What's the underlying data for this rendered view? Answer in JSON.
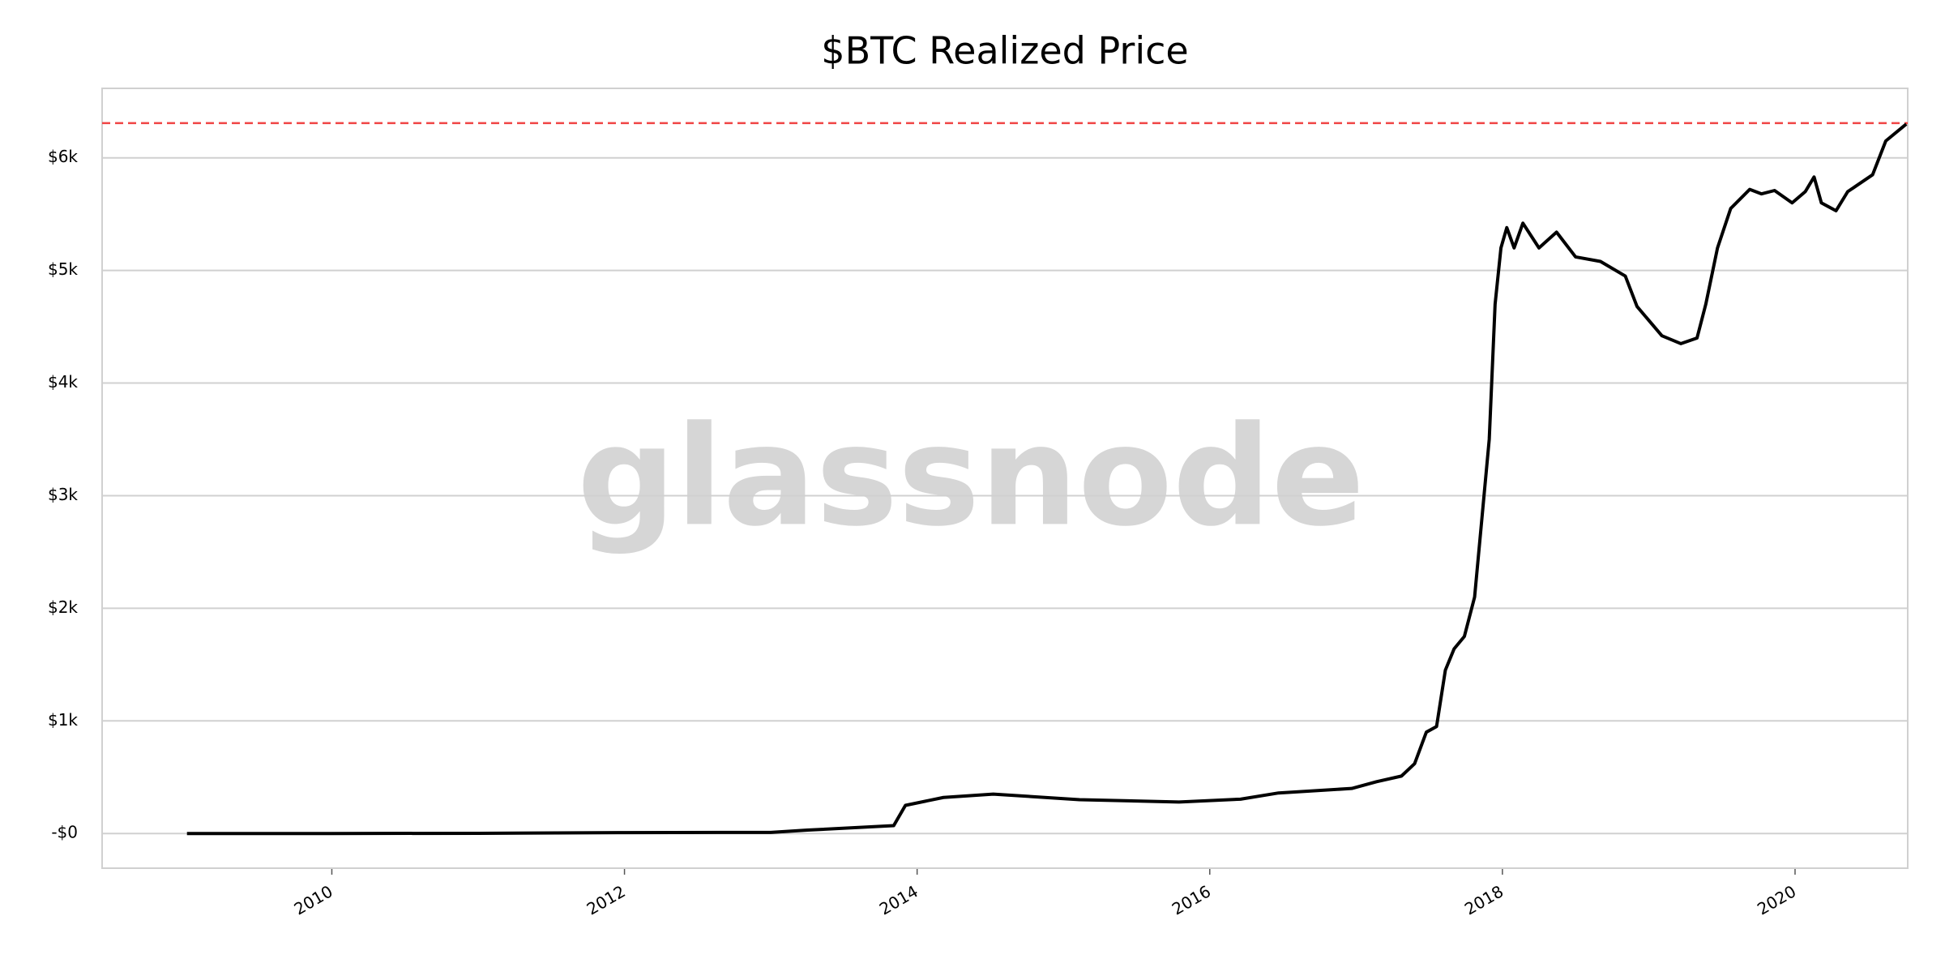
{
  "chart_data": {
    "type": "line",
    "title": "$BTC Realized Price",
    "watermark": "glassnode",
    "x": [
      2009.01,
      2010.0,
      2011.0,
      2012.0,
      2013.0,
      2013.25,
      2013.84,
      2013.92,
      2014.18,
      2014.52,
      2015.11,
      2015.79,
      2016.21,
      2016.47,
      2016.97,
      2017.14,
      2017.31,
      2017.4,
      2017.48,
      2017.55,
      2017.61,
      2017.67,
      2017.74,
      2017.81,
      2017.86,
      2017.91,
      2017.95,
      2017.99,
      2018.03,
      2018.08,
      2018.14,
      2018.25,
      2018.37,
      2018.5,
      2018.67,
      2018.84,
      2018.92,
      2019.09,
      2019.22,
      2019.33,
      2019.39,
      2019.47,
      2019.56,
      2019.69,
      2019.77,
      2019.86,
      2019.98,
      2020.07,
      2020.13,
      2020.18,
      2020.28,
      2020.36,
      2020.53,
      2020.62,
      2020.76
    ],
    "values": [
      0,
      0,
      2,
      8,
      10,
      30,
      70,
      250,
      320,
      350,
      300,
      280,
      305,
      360,
      400,
      460,
      510,
      620,
      900,
      950,
      1450,
      1640,
      1750,
      2100,
      2800,
      3500,
      4700,
      5200,
      5380,
      5200,
      5420,
      5200,
      5340,
      5120,
      5080,
      4950,
      4680,
      4420,
      4350,
      4400,
      4700,
      5200,
      5550,
      5720,
      5680,
      5710,
      5600,
      5700,
      5830,
      5600,
      5530,
      5700,
      5850,
      6150,
      6300
    ],
    "color": "#000000",
    "reference_line": {
      "value": 6308,
      "color": "#f04545"
    },
    "xlim": [
      2008.43,
      2020.77
    ],
    "xticks": [
      2010,
      2012,
      2014,
      2016,
      2018,
      2020
    ],
    "ylim": [
      -308,
      6617
    ],
    "yticks": [
      {
        "value": 0,
        "label": "-$0"
      },
      {
        "value": 1000,
        "label": "$1k"
      },
      {
        "value": 2000,
        "label": "$2k"
      },
      {
        "value": 3000,
        "label": "$3k"
      },
      {
        "value": 4000,
        "label": "$4k"
      },
      {
        "value": 5000,
        "label": "$5k"
      },
      {
        "value": 6000,
        "label": "$6k"
      }
    ],
    "grid": true
  }
}
